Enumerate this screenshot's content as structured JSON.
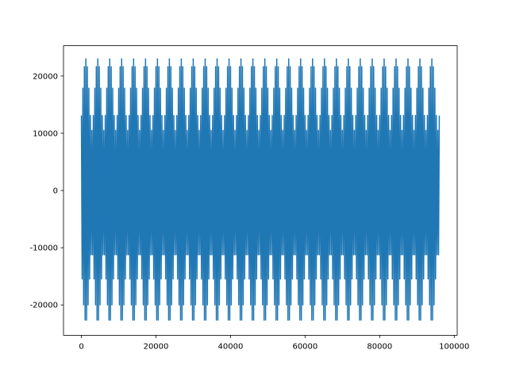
{
  "chart_data": {
    "type": "line",
    "color": "#1f77b4",
    "xlim": [
      -4800,
      100800
    ],
    "xticks": [
      0,
      20000,
      40000,
      60000,
      80000,
      100000
    ],
    "ylim": [
      -25300,
      25300
    ],
    "yticks": [
      -20000,
      -10000,
      0,
      10000,
      20000
    ],
    "x": [
      0,
      200,
      400,
      600,
      800,
      1000,
      1200,
      1400,
      1600,
      1800,
      2000,
      2200,
      2400,
      2600,
      2800,
      3000,
      3200,
      3400,
      3600,
      3800,
      4000,
      4200,
      4400,
      4600,
      4800,
      5000,
      5200,
      5400,
      5600,
      5800,
      6000,
      6200,
      6400,
      6600,
      6800,
      7000,
      7200,
      7400,
      7600,
      7800,
      8000,
      8200,
      8400,
      8600,
      8800,
      9000,
      9200,
      9400,
      9600,
      9800,
      10000,
      10200,
      10400,
      10600,
      10800,
      11000,
      11200,
      11400,
      11600,
      11800,
      12000,
      12200,
      12400,
      12600,
      12800,
      13000,
      13200,
      13400,
      13600,
      13800,
      14000,
      14200,
      14400,
      14600,
      14800,
      15000,
      15200,
      15400,
      15600,
      15800,
      16000,
      16200,
      16400,
      16600,
      16800,
      17000,
      17200,
      17400,
      17600,
      17800,
      18000,
      18200,
      18400,
      18600,
      18800,
      19000,
      19200,
      19400,
      19600,
      19800,
      20000,
      20200,
      20400,
      20600,
      20800,
      21000,
      21200,
      21400,
      21600,
      21800,
      22000,
      22200,
      22400,
      22600,
      22800,
      23000,
      23200,
      23400,
      23600,
      23800,
      24000,
      24200,
      24400,
      24600,
      24800,
      25000,
      25200,
      25400,
      25600,
      25800,
      26000,
      26200,
      26400,
      26600,
      26800,
      27000,
      27200,
      27400,
      27600,
      27800,
      28000,
      28200,
      28400,
      28600,
      28800,
      29000,
      29200,
      29400,
      29600,
      29800,
      30000,
      30200,
      30400,
      30600,
      30800,
      31000,
      31200,
      31400,
      31600,
      31800,
      32000,
      32200,
      32400,
      32600,
      32800,
      33000,
      33200,
      33400,
      33600,
      33800,
      34000,
      34200,
      34400,
      34600,
      34800,
      35000,
      35200,
      35400,
      35600,
      35800,
      36000,
      36200,
      36400,
      36600,
      36800,
      37000,
      37200,
      37400,
      37600,
      37800,
      38000,
      38200,
      38400,
      38600,
      38800,
      39000,
      39200,
      39400,
      39600,
      39800,
      40000,
      40200,
      40400,
      40600,
      40800,
      41000,
      41200,
      41400,
      41600,
      41800,
      42000,
      42200,
      42400,
      42600,
      42800,
      43000,
      43200,
      43400,
      43600,
      43800,
      44000,
      44200,
      44400,
      44600,
      44800,
      45000,
      45200,
      45400,
      45600,
      45800,
      46000,
      46200,
      46400,
      46600,
      46800,
      47000,
      47200,
      47400,
      47600,
      47800,
      48000,
      48200,
      48400,
      48600,
      48800,
      49000,
      49200,
      49400,
      49600,
      49800,
      50000,
      50200,
      50400,
      50600,
      50800,
      51000,
      51200,
      51400,
      51600,
      51800,
      52000,
      52200,
      52400,
      52600,
      52800,
      53000,
      53200,
      53400,
      53600,
      53800,
      54000,
      54200,
      54400,
      54600,
      54800,
      55000,
      55200,
      55400,
      55600,
      55800,
      56000,
      56200,
      56400,
      56600,
      56800,
      57000,
      57200,
      57400,
      57600,
      57800,
      58000,
      58200,
      58400,
      58600,
      58800,
      59000,
      59200,
      59400,
      59600,
      59800,
      60000,
      60200,
      60400,
      60600,
      60800,
      61000,
      61200,
      61400,
      61600,
      61800,
      62000,
      62200,
      62400,
      62600,
      62800,
      63000,
      63200,
      63400,
      63600,
      63800,
      64000,
      64200,
      64400,
      64600,
      64800,
      65000,
      65200,
      65400,
      65600,
      65800,
      66000,
      66200,
      66400,
      66600,
      66800,
      67000,
      67200,
      67400,
      67600,
      67800,
      68000,
      68200,
      68400,
      68600,
      68800,
      69000,
      69200,
      69400,
      69600,
      69800,
      70000,
      70200,
      70400,
      70600,
      70800,
      71000,
      71200,
      71400,
      71600,
      71800,
      72000,
      72200,
      72400,
      72600,
      72800,
      73000,
      73200,
      73400,
      73600,
      73800,
      74000,
      74200,
      74400,
      74600,
      74800,
      75000,
      75200,
      75400,
      75600,
      75800,
      76000,
      76200,
      76400,
      76600,
      76800,
      77000,
      77200,
      77400,
      77600,
      77800,
      78000,
      78200,
      78400,
      78600,
      78800,
      79000,
      79200,
      79400,
      79600,
      79800,
      80000,
      80200,
      80400,
      80600,
      80800,
      81000,
      81200,
      81400,
      81600,
      81800,
      82000,
      82200,
      82400,
      82600,
      82800,
      83000,
      83200,
      83400,
      83600,
      83800,
      84000,
      84200,
      84400,
      84600,
      84800,
      85000,
      85200,
      85400,
      85600,
      85800,
      86000,
      86200,
      86400,
      86600,
      86800,
      87000,
      87200,
      87400,
      87600,
      87800,
      88000,
      88200,
      88400,
      88600,
      88800,
      89000,
      89200,
      89400,
      89600,
      89800,
      90000,
      90200,
      90400,
      90600,
      90800,
      91000,
      91200,
      91400,
      91600,
      91800,
      92000,
      92200,
      92400,
      92600,
      92800,
      93000,
      93200,
      93400,
      93600,
      93800,
      94000,
      94200,
      94400,
      94600,
      94800,
      95000,
      95200,
      95400,
      95600,
      95800,
      96000
    ],
    "values": [
      13100,
      -15470,
      17880,
      -19990,
      21630,
      -22650,
      23000,
      -22650,
      21630,
      -19990,
      17880,
      -15470,
      13100,
      -11230,
      10500,
      -11230,
      13100,
      -15470,
      17880,
      -19990,
      21630,
      -22650,
      23000,
      -22650,
      21630,
      -19990,
      17880,
      -15470,
      13100,
      -11230,
      10500,
      -11230,
      13100,
      -15470,
      17880,
      -19990,
      21630,
      -22650,
      23000,
      -22650,
      21630,
      -19990,
      17880,
      -15470,
      13100,
      -11230,
      10500,
      -11230,
      13100,
      -15470,
      17880,
      -19990,
      21630,
      -22650,
      23000,
      -22650,
      21630,
      -19990,
      17880,
      -15470,
      13100,
      -11230,
      10500,
      -11230,
      13100,
      -15470,
      17880,
      -19990,
      21630,
      -22650,
      23000,
      -22650,
      21630,
      -19990,
      17880,
      -15470,
      13100,
      -11230,
      10500,
      -11230,
      13100,
      -15470,
      17880,
      -19990,
      21630,
      -22650,
      23000,
      -22650,
      21630,
      -19990,
      17880,
      -15470,
      13100,
      -11230,
      10500,
      -11230,
      13100,
      -15470,
      17880,
      -19990,
      21630,
      -22650,
      23000,
      -22650,
      21630,
      -19990,
      17880,
      -15470,
      13100,
      -11230,
      10500,
      -11230,
      13100,
      -15470,
      17880,
      -19990,
      21630,
      -22650,
      23000,
      -22650,
      21630,
      -19990,
      17880,
      -15470,
      13100,
      -11230,
      10500,
      -11230,
      13100,
      -15470,
      17880,
      -19990,
      21630,
      -22650,
      23000,
      -22650,
      21630,
      -19990,
      17880,
      -15470,
      13100,
      -11230,
      10500,
      -11230,
      13100,
      -15470,
      17880,
      -19990,
      21630,
      -22650,
      23000,
      -22650,
      21630,
      -19990,
      17880,
      -15470,
      13100,
      -11230,
      10500,
      -11230,
      13100,
      -15470,
      17880,
      -19990,
      21630,
      -22650,
      23000,
      -22650,
      21630,
      -19990,
      17880,
      -15470,
      13100,
      -11230,
      10500,
      -11230,
      13100,
      -15470,
      17880,
      -19990,
      21630,
      -22650,
      23000,
      -22650,
      21630,
      -19990,
      17880,
      -15470,
      13100,
      -11230,
      10500,
      -11230,
      13100,
      -15470,
      17880,
      -19990,
      21630,
      -22650,
      23000,
      -22650,
      21630,
      -19990,
      17880,
      -15470,
      13100,
      -11230,
      10500,
      -11230,
      13100,
      -15470,
      17880,
      -19990,
      21630,
      -22650,
      23000,
      -22650,
      21630,
      -19990,
      17880,
      -15470,
      13100,
      -11230,
      10500,
      -11230,
      13100,
      -15470,
      17880,
      -19990,
      21630,
      -22650,
      23000,
      -22650,
      21630,
      -19990,
      17880,
      -15470,
      13100,
      -11230,
      10500,
      -11230,
      13100,
      -15470,
      17880,
      -19990,
      21630,
      -22650,
      23000,
      -22650,
      21630,
      -19990,
      17880,
      -15470,
      13100,
      -11230,
      10500,
      -11230,
      13100,
      -15470,
      17880,
      -19990,
      21630,
      -22650,
      23000,
      -22650,
      21630,
      -19990,
      17880,
      -15470,
      13100,
      -11230,
      10500,
      -11230,
      13100,
      -15470,
      17880,
      -19990,
      21630,
      -22650,
      23000,
      -22650,
      21630,
      -19990,
      17880,
      -15470,
      13100,
      -11230,
      10500,
      -11230,
      13100,
      -15470,
      17880,
      -19990,
      21630,
      -22650,
      23000,
      -22650,
      21630,
      -19990,
      17880,
      -15470,
      13100,
      -11230,
      10500,
      -11230,
      13100,
      -15470,
      17880,
      -19990,
      21630,
      -22650,
      23000,
      -22650,
      21630,
      -19990,
      17880,
      -15470,
      13100,
      -11230,
      10500,
      -11230,
      13100,
      -15470,
      17880,
      -19990,
      21630,
      -22650,
      23000,
      -22650,
      21630,
      -19990,
      17880,
      -15470,
      13100,
      -11230,
      10500,
      -11230,
      13100,
      -15470,
      17880,
      -19990,
      21630,
      -22650,
      23000,
      -22650,
      21630,
      -19990,
      17880,
      -15470,
      13100,
      -11230,
      10500,
      -11230,
      13100,
      -15470,
      17880,
      -19990,
      21630,
      -22650,
      23000,
      -22650,
      21630,
      -19990,
      17880,
      -15470,
      13100,
      -11230,
      10500,
      -11230,
      13100,
      -15470,
      17880,
      -19990,
      21630,
      -22650,
      23000,
      -22650,
      21630,
      -19990,
      17880,
      -15470,
      13100,
      -11230,
      10500,
      -11230,
      13100,
      -15470,
      17880,
      -19990,
      21630,
      -22650,
      23000,
      -22650,
      21630,
      -19990,
      17880,
      -15470,
      13100,
      -11230,
      10500,
      -11230,
      13100,
      -15470,
      17880,
      -19990,
      21630,
      -22650,
      23000,
      -22650,
      21630,
      -19990,
      17880,
      -15470,
      13100,
      -11230,
      10500,
      -11230,
      13100,
      -15470,
      17880,
      -19990,
      21630,
      -22650,
      23000,
      -22650,
      21630,
      -19990,
      17880,
      -15470,
      13100,
      -11230,
      10500,
      -11230,
      13100,
      -15470,
      17880,
      -19990,
      21630,
      -22650,
      23000,
      -22650,
      21630,
      -19990,
      17880,
      -15470,
      13100,
      -11230,
      10500,
      -11230,
      13100,
      -15470,
      17880,
      -19990,
      21630,
      -22650,
      23000,
      -22650,
      21630,
      -19990,
      17880,
      -15470,
      13100,
      -11230,
      10500,
      -11230,
      13100,
      -15470,
      17880,
      -19990,
      21630,
      -22650,
      23000,
      -22650,
      21630,
      -19990,
      17880,
      -15470,
      13100,
      -11230,
      10500,
      -11230,
      13100
    ]
  }
}
